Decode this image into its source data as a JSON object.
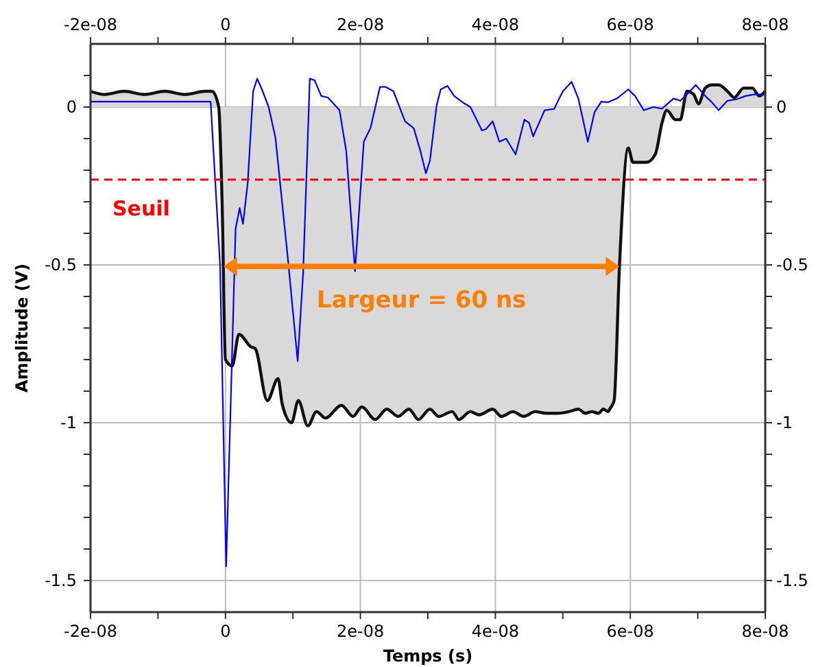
{
  "chart_data": {
    "type": "area",
    "xlabel": "Temps (s)",
    "ylabel": "Amplitude (V)",
    "xlim": [
      -2e-08,
      8e-08
    ],
    "x2lim": [
      -2e-08,
      8e-08
    ],
    "xticks": [
      {
        "value": -2e-08,
        "label": "-2e-08"
      },
      {
        "value": -1e-08,
        "label": null
      },
      {
        "value": 0,
        "label": "0"
      },
      {
        "value": 1e-08,
        "label": null
      },
      {
        "value": 2e-08,
        "label": "2e-08"
      },
      {
        "value": 3e-08,
        "label": null
      },
      {
        "value": 4e-08,
        "label": "4e-08"
      },
      {
        "value": 5e-08,
        "label": null
      },
      {
        "value": 6e-08,
        "label": "6e-08"
      },
      {
        "value": 7e-08,
        "label": null
      },
      {
        "value": 8e-08,
        "label": "8e-08"
      }
    ],
    "x2ticks": [
      {
        "value": -2e-08,
        "label": "-2e-08"
      },
      {
        "value": -1e-08,
        "label": null
      },
      {
        "value": 0,
        "label": "0"
      },
      {
        "value": 1e-08,
        "label": null
      },
      {
        "value": 2e-08,
        "label": "2e-08"
      },
      {
        "value": 3e-08,
        "label": null
      },
      {
        "value": 4e-08,
        "label": "4e-08"
      },
      {
        "value": 5e-08,
        "label": null
      },
      {
        "value": 6e-08,
        "label": "6e-08"
      },
      {
        "value": 7e-08,
        "label": null
      },
      {
        "value": 8e-08,
        "label": "8e-08"
      }
    ],
    "ylim": [
      -1.6,
      0.2
    ],
    "y2lim": [
      -1.6,
      0.2
    ],
    "yticks": [
      {
        "value": 0.1,
        "label": null
      },
      0,
      {
        "value": -0.1,
        "label": null
      },
      {
        "value": -0.2,
        "label": null
      },
      {
        "value": -0.3,
        "label": null
      },
      {
        "value": -0.4,
        "label": null
      },
      -0.5,
      {
        "value": -0.6,
        "label": null
      },
      {
        "value": -0.7,
        "label": null
      },
      {
        "value": -0.8,
        "label": null
      },
      {
        "value": -0.9,
        "label": null
      },
      -1,
      {
        "value": -1.1,
        "label": null
      },
      {
        "value": -1.2,
        "label": null
      },
      {
        "value": -1.3,
        "label": null
      },
      {
        "value": -1.4,
        "label": null
      },
      -1.5
    ],
    "y2ticks": [
      {
        "value": 0.1,
        "label": null
      },
      0,
      {
        "value": -0.1,
        "label": null
      },
      {
        "value": -0.2,
        "label": null
      },
      {
        "value": -0.3,
        "label": null
      },
      {
        "value": -0.4,
        "label": null
      },
      -0.5,
      {
        "value": -0.6,
        "label": null
      },
      {
        "value": -0.7,
        "label": null
      },
      {
        "value": -0.8,
        "label": null
      },
      {
        "value": -0.9,
        "label": null
      },
      -1,
      {
        "value": -1.1,
        "label": null
      },
      {
        "value": -1.2,
        "label": null
      },
      {
        "value": -1.3,
        "label": null
      },
      {
        "value": -1.4,
        "label": null
      },
      -1.5
    ],
    "grid": true,
    "ref_lines": [
      {
        "axis": "y",
        "value": -0.23,
        "label": "Seuil",
        "color": "#ff0000",
        "line_style": "dashed"
      }
    ],
    "annotations": [
      "Largeur = 60 ns"
    ],
    "series": [
      {
        "color": "#d9d9d9",
        "x": [
          -2e-08,
          -1.8e-08,
          -1.5e-08,
          -1.2e-08,
          -9e-09,
          -6e-09,
          -3e-09,
          -2e-09,
          -1e-09,
          -5e-10,
          0,
          1e-09,
          2e-09,
          3.8e-09,
          4.4e-09,
          6.2e-09,
          7.8e-09,
          8.4e-09,
          9.8e-09,
          1.08e-08,
          1.22e-08,
          1.35e-08,
          1.48e-08,
          1.72e-08,
          1.89e-08,
          2.02e-08,
          2.22e-08,
          2.39e-08,
          2.56e-08,
          2.72e-08,
          2.86e-08,
          3.03e-08,
          3.16e-08,
          3.36e-08,
          3.46e-08,
          3.63e-08,
          3.76e-08,
          3.96e-08,
          4.09e-08,
          4.26e-08,
          4.42e-08,
          4.59e-08,
          4.76e-08,
          4.93e-08,
          5.09e-08,
          5.23e-08,
          5.33e-08,
          5.43e-08,
          5.53e-08,
          5.6e-08,
          5.67e-08,
          5.7e-08,
          5.76e-08,
          5.84e-08,
          5.97e-08,
          6.04e-08,
          6.24e-08,
          6.37e-08,
          6.47e-08,
          6.54e-08,
          6.67e-08,
          6.74e-08,
          6.84e-08,
          6.94e-08,
          7.01e-08,
          7.11e-08,
          7.21e-08,
          7.31e-08,
          7.44e-08,
          7.54e-08,
          7.68e-08,
          7.81e-08,
          7.91e-08,
          8e-08
        ],
        "values": [
          0.05,
          0.04,
          0.05,
          0.04,
          0.05,
          0.04,
          0.05,
          0.05,
          0,
          -0.3,
          -0.8,
          -0.82,
          -0.72,
          -0.76,
          -0.765,
          -0.93,
          -0.86,
          -0.94,
          -1,
          -0.93,
          -1.01,
          -0.965,
          -0.985,
          -0.945,
          -0.98,
          -0.95,
          -0.99,
          -0.957,
          -0.98,
          -0.957,
          -0.99,
          -0.957,
          -0.98,
          -0.965,
          -0.99,
          -0.965,
          -0.975,
          -0.957,
          -0.98,
          -0.965,
          -0.98,
          -0.965,
          -0.97,
          -0.97,
          -0.965,
          -0.957,
          -0.97,
          -0.965,
          -0.97,
          -0.957,
          -0.965,
          -0.955,
          -0.93,
          -0.5,
          -0.13,
          -0.175,
          -0.175,
          -0.15,
          -0.05,
          -0.01,
          -0.04,
          -0.04,
          0.05,
          0.04,
          0.01,
          0.06,
          0.07,
          0.07,
          0.05,
          0.03,
          0.06,
          0.06,
          0.035,
          0.05
        ]
      },
      {
        "type": "line",
        "color": "#0000ff",
        "x": [
          -2e-08,
          -2.2e-09,
          -8e-10,
          1e-10,
          1.5e-09,
          2.1e-09,
          2.6e-09,
          3.3e-09,
          4.1e-09,
          4.7e-09,
          5.4e-09,
          6.4e-09,
          7.4e-09,
          9.2e-09,
          1.07e-08,
          1.15e-08,
          1.25e-08,
          1.32e-08,
          1.42e-08,
          1.52e-08,
          1.69e-08,
          1.79e-08,
          1.92e-08,
          2.05e-08,
          2.15e-08,
          2.29e-08,
          2.37e-08,
          2.49e-08,
          2.66e-08,
          2.79e-08,
          2.89e-08,
          2.97e-08,
          3.03e-08,
          3.13e-08,
          3.19e-08,
          3.29e-08,
          3.39e-08,
          3.53e-08,
          3.63e-08,
          3.8e-08,
          3.86e-08,
          3.96e-08,
          4.06e-08,
          4.16e-08,
          4.3e-08,
          4.43e-08,
          4.5e-08,
          4.56e-08,
          4.73e-08,
          4.87e-08,
          5e-08,
          5.13e-08,
          5.23e-08,
          5.37e-08,
          5.47e-08,
          5.57e-08,
          5.67e-08,
          5.8e-08,
          5.97e-08,
          6.07e-08,
          6.2e-08,
          6.34e-08,
          6.47e-08,
          6.64e-08,
          6.74e-08,
          6.84e-08,
          6.97e-08,
          7.11e-08,
          7.21e-08,
          7.31e-08,
          7.44e-08,
          7.58e-08,
          7.71e-08,
          7.84e-08,
          8e-08
        ],
        "values": [
          0.017,
          0.017,
          -0.5,
          -1.455,
          -0.385,
          -0.32,
          -0.37,
          -0.24,
          0.05,
          0.09,
          0.056,
          0,
          -0.096,
          -0.47,
          -0.805,
          -0.53,
          0.09,
          0.085,
          0.035,
          0.03,
          -0.01,
          -0.14,
          -0.52,
          -0.11,
          -0.066,
          0.064,
          0.064,
          0.05,
          -0.045,
          -0.067,
          -0.14,
          -0.21,
          -0.17,
          0.006,
          0.056,
          0.067,
          0.035,
          0.013,
          0,
          -0.074,
          -0.07,
          -0.045,
          -0.11,
          -0.1,
          -0.15,
          -0.04,
          -0.05,
          -0.093,
          -0.01,
          -0.006,
          0.05,
          0.08,
          0.027,
          -0.11,
          -0.016,
          0.017,
          0.015,
          0.027,
          0.056,
          0.035,
          -0.01,
          0,
          -0.005,
          0.027,
          0.02,
          0.04,
          0.07,
          0.035,
          0.015,
          -0.01,
          0.02,
          0.025,
          0.035,
          0.04,
          0.04
        ]
      }
    ]
  }
}
